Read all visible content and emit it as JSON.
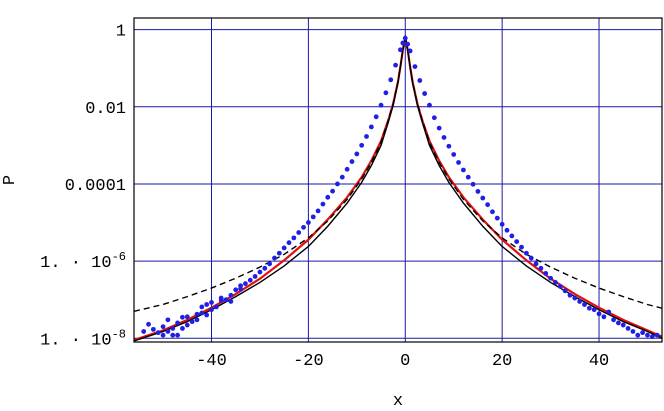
{
  "chart_data": {
    "type": "scatter",
    "xlabel": "x",
    "ylabel": "P",
    "xlim": [
      -56,
      53
    ],
    "ylim": [
      8e-09,
      2.0
    ],
    "y_scale": "log",
    "grid": true,
    "x_ticks": [
      -40,
      -20,
      0,
      20,
      40
    ],
    "x_tick_labels": [
      "-40",
      "-20",
      "0",
      "20",
      "40"
    ],
    "y_ticks": [
      1e-08,
      1e-06,
      0.0001,
      0.01,
      1
    ],
    "y_tick_labels": [
      {
        "base": "1. · 10",
        "exp": "-8"
      },
      {
        "base": "1. · 10",
        "exp": "-6"
      },
      {
        "base": "0.0001",
        "exp": ""
      },
      {
        "base": "0.01",
        "exp": ""
      },
      {
        "base": "1",
        "exp": ""
      }
    ],
    "colors": {
      "grid": "#1a1aa8",
      "points": "#1f1fe6",
      "red_curve": "#e01010",
      "solid_curve": "#000000",
      "dashed_curve": "#000000"
    },
    "series": [
      {
        "style": "points",
        "color": "#1f1fe6",
        "x": [
          -54,
          -53,
          -52,
          -51,
          -50,
          -50,
          -49,
          -49,
          -48,
          -48,
          -47,
          -47,
          -46,
          -46,
          -45,
          -45,
          -44,
          -43,
          -43,
          -42,
          -42,
          -41,
          -41,
          -40,
          -40,
          -39,
          -38,
          -38,
          -37,
          -36,
          -36,
          -35,
          -34,
          -34,
          -33,
          -32,
          -31,
          -30,
          -29,
          -28,
          -27,
          -26,
          -25,
          -24,
          -23,
          -22,
          -21,
          -20,
          -19,
          -18,
          -17,
          -16,
          -15,
          -14,
          -13,
          -12,
          -11,
          -10,
          -9,
          -8,
          -7,
          -6,
          -5,
          -4,
          -3,
          -2,
          -1,
          -0.5,
          0,
          0.5,
          1,
          2,
          3,
          4,
          5,
          6,
          7,
          8,
          9,
          10,
          11,
          12,
          13,
          14,
          15,
          16,
          17,
          18,
          19,
          20,
          21,
          22,
          23,
          24,
          25,
          26,
          27,
          28,
          29,
          30,
          31,
          32,
          33,
          34,
          35,
          36,
          37,
          38,
          39,
          40,
          41,
          42,
          43,
          44,
          45,
          46,
          47,
          48,
          49,
          50,
          51,
          52
        ],
        "y": [
          1.5e-08,
          2.3e-08,
          1.7e-08,
          1.4e-08,
          2e-08,
          1.2e-08,
          1.5e-08,
          3e-08,
          1.2e-08,
          1.8e-08,
          1.2e-08,
          2.5e-08,
          3.5e-08,
          1.8e-08,
          2.2e-08,
          3.6e-08,
          2.7e-08,
          4.2e-08,
          3e-08,
          6.5e-08,
          4.5e-08,
          4e-08,
          7.5e-08,
          5.5e-08,
          8.5e-08,
          6.5e-08,
          9.5e-08,
          1.1e-07,
          1e-07,
          9e-08,
          1.3e-07,
          1.8e-07,
          1.9e-07,
          2.3e-07,
          2.6e-07,
          3.2e-07,
          4e-07,
          5.2e-07,
          6.5e-07,
          8.5e-07,
          1.2e-06,
          1.6e-06,
          2.2e-06,
          3e-06,
          4e-06,
          5.5e-06,
          7.5e-06,
          1e-05,
          1.4e-05,
          2e-05,
          3e-05,
          4.5e-05,
          6.5e-05,
          0.0001,
          0.00015,
          0.00024,
          0.00038,
          0.0006,
          0.001,
          0.0017,
          0.003,
          0.0055,
          0.011,
          0.023,
          0.05,
          0.12,
          0.3,
          0.45,
          0.6,
          0.42,
          0.28,
          0.11,
          0.048,
          0.022,
          0.011,
          0.0052,
          0.0028,
          0.0016,
          0.00095,
          0.00058,
          0.00036,
          0.00023,
          0.00015,
          9.8e-05,
          6.4e-05,
          4.3e-05,
          2.9e-05,
          1.9e-05,
          1.3e-05,
          9e-06,
          6.3e-06,
          4.5e-06,
          3.2e-06,
          2.3e-06,
          1.6e-06,
          1.2e-06,
          8.5e-07,
          6.5e-07,
          4.8e-07,
          3.6e-07,
          2.8e-07,
          2.2e-07,
          1.7e-07,
          1.3e-07,
          1.1e-07,
          9e-08,
          7.5e-08,
          6e-08,
          5.5e-08,
          4.3e-08,
          3.6e-08,
          4.8e-08,
          3e-08,
          2.5e-08,
          2.2e-08,
          1.8e-08,
          1.5e-08,
          1.2e-08,
          1.4e-08,
          1.2e-08,
          1.1e-08,
          1.2e-08
        ]
      },
      {
        "style": "red-line",
        "color": "#e01010",
        "x": [
          -56,
          -50,
          -45,
          -40,
          -35,
          -30,
          -25,
          -20,
          -16,
          -12,
          -9,
          -7,
          -5,
          -3.5,
          -2.5,
          -1.5,
          -1,
          -0.5,
          0,
          0.5,
          1,
          1.5,
          2.5,
          3.5,
          5,
          7,
          9,
          12,
          16,
          20,
          25,
          30,
          35,
          40,
          45,
          50,
          53
        ],
        "y": [
          9e-09,
          1.6e-08,
          3e-08,
          6.2e-08,
          1.4e-07,
          3.5e-07,
          1.05e-06,
          3.6e-06,
          1.2e-05,
          4.5e-05,
          0.00015,
          0.0004,
          0.0013,
          0.0045,
          0.012,
          0.045,
          0.11,
          0.3,
          0.6,
          0.3,
          0.11,
          0.045,
          0.012,
          0.0045,
          0.0013,
          0.0004,
          0.00015,
          4.5e-05,
          1.2e-05,
          3.6e-06,
          1.05e-06,
          3.5e-07,
          1.4e-07,
          6.2e-08,
          3e-08,
          1.6e-08,
          1.1e-08
        ]
      },
      {
        "style": "solid-line",
        "color": "#000000",
        "x": [
          -56,
          -50,
          -45,
          -40,
          -35,
          -30,
          -25,
          -20,
          -16,
          -12,
          -9,
          -7,
          -5,
          -3.5,
          -2.5,
          -1.5,
          -1,
          -0.5,
          0,
          0.5,
          1,
          1.5,
          2.5,
          3.5,
          5,
          7,
          9,
          12,
          16,
          20,
          25,
          30,
          35,
          40,
          45,
          50,
          53
        ],
        "y": [
          8.5e-09,
          1.5e-08,
          2.7e-08,
          5.5e-08,
          1.2e-07,
          2.8e-07,
          7.5e-07,
          2.4e-06,
          8e-06,
          3.2e-05,
          0.00011,
          0.0003,
          0.001,
          0.004,
          0.011,
          0.042,
          0.11,
          0.3,
          0.7,
          0.3,
          0.11,
          0.042,
          0.011,
          0.004,
          0.001,
          0.0003,
          0.00011,
          3.2e-05,
          8e-06,
          2.4e-06,
          7.5e-07,
          2.8e-07,
          1.2e-07,
          5.5e-08,
          2.7e-08,
          1.5e-08,
          1e-08
        ]
      },
      {
        "style": "dashed-line",
        "color": "#000000",
        "x": [
          -56,
          -50,
          -45,
          -40,
          -35,
          -30,
          -25,
          -20,
          -16,
          -12,
          -9,
          -7,
          -5,
          -3.5,
          -2.5,
          -1.5,
          -1,
          -0.5,
          0,
          0.5,
          1,
          1.5,
          2.5,
          3.5,
          5,
          7,
          9,
          12,
          16,
          20,
          25,
          30,
          35,
          40,
          45,
          50,
          53
        ],
        "y": [
          5e-08,
          7.5e-08,
          1.2e-07,
          2e-07,
          3.6e-07,
          7e-07,
          1.5e-06,
          4e-06,
          1.1e-05,
          4e-05,
          0.000135,
          0.00036,
          0.0012,
          0.0045,
          0.012,
          0.045,
          0.11,
          0.3,
          0.65,
          0.3,
          0.11,
          0.045,
          0.012,
          0.0045,
          0.0012,
          0.00036,
          0.000135,
          4e-05,
          1.1e-05,
          4e-06,
          1.5e-06,
          7e-07,
          3.6e-07,
          2e-07,
          1.2e-07,
          7.5e-08,
          6e-08
        ]
      }
    ]
  }
}
